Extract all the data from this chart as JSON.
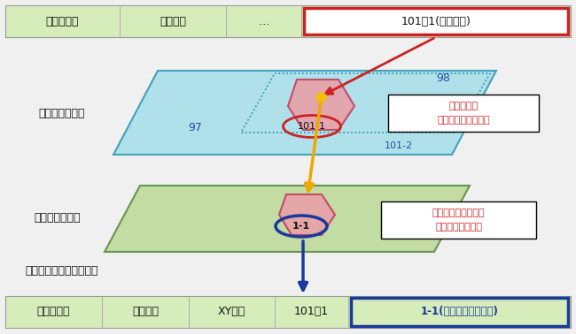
{
  "bg_color": "#f0f0f0",
  "light_green_bg": "#d6edbb",
  "cyan_plane_color": "#a0dde8",
  "cyan_plane_edge": "#2090b0",
  "green_plane_color": "#b8d890",
  "green_plane_edge": "#4a8030",
  "pink_shape_color": "#e8a0a8",
  "pink_shape_edge": "#c04060",
  "red_box_color": "#cc2222",
  "blue_box_color": "#1a3a9a",
  "red_text": "#cc2222",
  "blue_text": "#2050a0",
  "dark_text": "#111111",
  "yellow_dot": "#f0c010",
  "yellow_arrow": "#f0a800",
  "blue_arrow": "#1a3a9a",
  "red_arrow": "#cc2222",
  "top_table_label1": "対象リスト",
  "top_table_label2": "管理番号",
  "top_table_label3": "…",
  "top_table_label4": "101！1(古い住所)",
  "left_label1": "過去の住宅地図",
  "left_label2": "最新の住宅地図",
  "left_label3": "精査後のリストイメージ",
  "note1_line1": "住所で突合",
  "note1_line2": "緯度経度座標の取得",
  "note2_line1": "緯度経度座標で突合",
  "note2_line2": "新しい住所の取得",
  "num97": "97",
  "num98": "98",
  "num101_1": "101-1",
  "num101_2": "101-2",
  "num1_1": "1-1",
  "bottom_label1": "対象リスト",
  "bottom_label2": "管理番号",
  "bottom_label3": "XY座標",
  "bottom_label4": "101！1",
  "bottom_label5": "1-1(新しい住所の追加)"
}
